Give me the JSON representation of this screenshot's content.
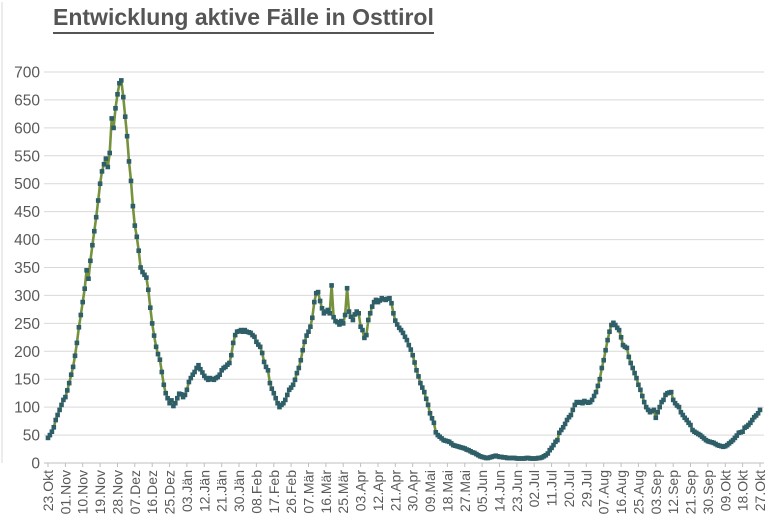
{
  "chart_data": {
    "type": "line",
    "title": "Entwicklung aktive Fälle in Osttirol",
    "x_tick_labels": [
      "23.Okt",
      "01.Nov",
      "10.Nov",
      "19.Nov",
      "28.Nov",
      "07.Dez",
      "16.Dez",
      "25.Dez",
      "03.Jän",
      "12.Jän",
      "21.Jän",
      "30.Jän",
      "08.Feb",
      "17.Feb",
      "26.Feb",
      "07.Mär",
      "16.Mär",
      "25.Mär",
      "03.Apr",
      "12.Apr",
      "21.Apr",
      "30.Apr",
      "09.Mai",
      "18.Mai",
      "27.Mai",
      "05.Jun",
      "14.Jun",
      "23.Jun",
      "02.Jul",
      "11.Jul",
      "20.Jul",
      "29.Jul",
      "07.Aug",
      "16.Aug",
      "25.Aug",
      "03.Sep",
      "12.Sep",
      "21.Sep",
      "30.Sep",
      "09.Okt",
      "18.Okt",
      "27.Okt"
    ],
    "x_tick_interval_days": 9,
    "ylim": [
      0,
      700
    ],
    "y_tick_step": 50,
    "grid": "horizontal",
    "legend": "none",
    "series": [
      {
        "name": "aktive Fälle",
        "sampling": "daily",
        "values": [
          45,
          50,
          56,
          64,
          77,
          86,
          95,
          104,
          113,
          118,
          130,
          143,
          158,
          172,
          192,
          215,
          243,
          265,
          288,
          312,
          345,
          330,
          362,
          390,
          415,
          440,
          470,
          500,
          522,
          535,
          545,
          530,
          555,
          617,
          600,
          635,
          660,
          680,
          685,
          655,
          620,
          585,
          540,
          505,
          460,
          425,
          405,
          380,
          350,
          342,
          337,
          332,
          310,
          278,
          250,
          228,
          208,
          195,
          185,
          163,
          140,
          125,
          116,
          107,
          112,
          102,
          107,
          116,
          124,
          123,
          118,
          122,
          131,
          145,
          152,
          158,
          163,
          170,
          175,
          168,
          162,
          156,
          152,
          149,
          152,
          150,
          149,
          152,
          154,
          158,
          166,
          170,
          172,
          176,
          179,
          193,
          215,
          229,
          235,
          236,
          238,
          235,
          238,
          235,
          234,
          233,
          229,
          226,
          217,
          212,
          208,
          197,
          181,
          172,
          166,
          143,
          133,
          125,
          116,
          107,
          100,
          104,
          107,
          113,
          122,
          131,
          135,
          140,
          149,
          161,
          170,
          184,
          202,
          217,
          228,
          235,
          244,
          260,
          288,
          304,
          306,
          290,
          277,
          268,
          271,
          274,
          268,
          318,
          261,
          254,
          252,
          248,
          254,
          250,
          265,
          313,
          271,
          262,
          256,
          266,
          271,
          268,
          244,
          238,
          224,
          229,
          256,
          268,
          280,
          288,
          292,
          288,
          291,
          295,
          293,
          292,
          294,
          295,
          286,
          268,
          255,
          248,
          242,
          238,
          233,
          226,
          220,
          211,
          203,
          193,
          180,
          166,
          155,
          143,
          135,
          127,
          115,
          104,
          89,
          80,
          72,
          55,
          50,
          47,
          44,
          41,
          40,
          39,
          38,
          35,
          32,
          31,
          30,
          29,
          28,
          27,
          26,
          24,
          23,
          21,
          19,
          18,
          16,
          14,
          12,
          11,
          10,
          9,
          9,
          10,
          11,
          12,
          13,
          12,
          11,
          11,
          10,
          10,
          9,
          9,
          9,
          9,
          9,
          8,
          8,
          8,
          8,
          8,
          9,
          9,
          8,
          8,
          8,
          8,
          9,
          9,
          10,
          12,
          14,
          17,
          23,
          27,
          32,
          38,
          41,
          54,
          59,
          64,
          70,
          77,
          82,
          86,
          95,
          104,
          109,
          108,
          109,
          107,
          111,
          109,
          108,
          109,
          113,
          120,
          127,
          138,
          150,
          170,
          184,
          202,
          220,
          235,
          247,
          251,
          247,
          242,
          238,
          225,
          211,
          208,
          206,
          190,
          179,
          170,
          161,
          152,
          140,
          131,
          120,
          109,
          100,
          95,
          91,
          93,
          95,
          81,
          91,
          100,
          109,
          113,
          122,
          125,
          126,
          127,
          113,
          107,
          103,
          100,
          91,
          86,
          81,
          77,
          72,
          68,
          59,
          56,
          54,
          52,
          50,
          47,
          44,
          41,
          39,
          38,
          37,
          36,
          34,
          32,
          31,
          30,
          29,
          30,
          32,
          35,
          38,
          41,
          45,
          49,
          54,
          55,
          56,
          63,
          65,
          68,
          72,
          77,
          82,
          85,
          89,
          95
        ]
      }
    ],
    "colors": {
      "line": "#76923c",
      "marker": "#2e5e68",
      "grid": "#d9d9d9",
      "axis": "#bfbfbf",
      "tick_label": "#595959",
      "title": "#555555"
    }
  }
}
